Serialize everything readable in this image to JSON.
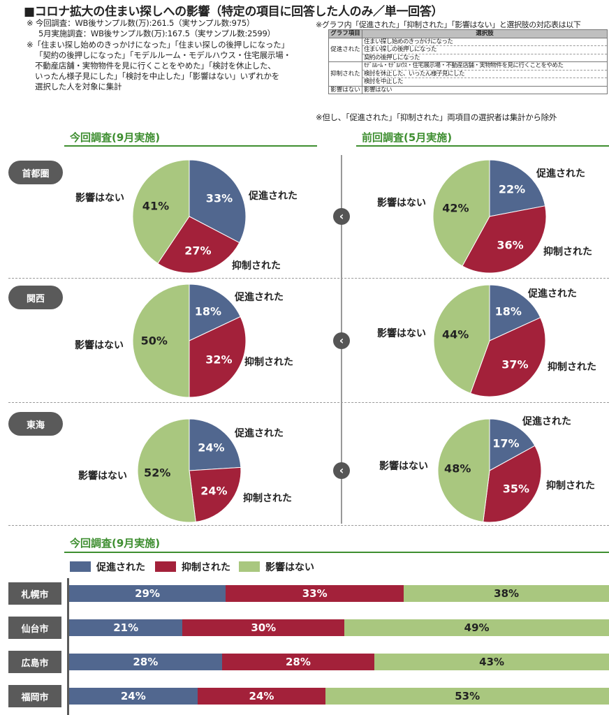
{
  "header": {
    "title": "■コロナ拡大の住まい探しへの影響（特定の項目に回答した人のみ／単一回答）",
    "notes": [
      "※ 今回調査：WB後サンプル数(万):261.5（実サンプル数:975）",
      "5月実施調査：WB後サンプル数(万):167.5（実サンプル数:2599）",
      "※「住まい探し始めのきっかけになった」「住まい探しの後押しになった」",
      "「契約の後押しになった」「モデルルーム・モデルハウス・住宅展示場・",
      "不動産店舗・実物物件を見に行くことをやめた」「検討を休止した、",
      "いったん様子見にした」「検討を中止した」「影響はない」いずれかを",
      "選択した人を対象に集計"
    ],
    "corr_note": "※グラフ内「促進された」「抑制された」「影響はない」と選択肢の対応表は以下",
    "exclude_note": "※但し、「促進された」「抑制された」両項目の選択者は集計から除外"
  },
  "corr_table": {
    "col_headers": [
      "グラフ項目",
      "選択肢"
    ],
    "groups": [
      {
        "category": "促進された",
        "options": [
          "住まい探し始めのきっかけになった",
          "住まい探しの後押しになった",
          "契約の後押しになった"
        ]
      },
      {
        "category": "抑制された",
        "options": [
          "ﾓﾃﾞﾙﾙｰﾑ・ﾓﾃﾞﾙﾊｳｽ・住宅展示場・不動産店舗・実物物件を見に行くことをやめた",
          "検討を休止した、いったん様子見にした",
          "検討を中止した"
        ]
      },
      {
        "category": "影響はない",
        "options": [
          "影響はない"
        ]
      }
    ]
  },
  "sections": {
    "current": "今回調査(9月実施)",
    "previous": "前回調査(5月実施)",
    "bottom": "今回調査(9月実施)"
  },
  "labels": {
    "promoted": "促進された",
    "suppressed": "抑制された",
    "none": "影響はない"
  },
  "colors": {
    "promoted": "#51678f",
    "suppressed": "#a3213a",
    "none": "#a9c77f",
    "accent": "#3e8e30"
  },
  "chart_data": [
    {
      "type": "pie",
      "region": "首都圏",
      "survey": "今回調査(9月実施)",
      "categories": [
        "促進された",
        "抑制された",
        "影響はない"
      ],
      "values": [
        33,
        27,
        41
      ],
      "unit": "%"
    },
    {
      "type": "pie",
      "region": "首都圏",
      "survey": "前回調査(5月実施)",
      "categories": [
        "促進された",
        "抑制された",
        "影響はない"
      ],
      "values": [
        22,
        36,
        42
      ],
      "unit": "%"
    },
    {
      "type": "pie",
      "region": "関西",
      "survey": "今回調査(9月実施)",
      "categories": [
        "促進された",
        "抑制された",
        "影響はない"
      ],
      "values": [
        18,
        32,
        50
      ],
      "unit": "%"
    },
    {
      "type": "pie",
      "region": "関西",
      "survey": "前回調査(5月実施)",
      "categories": [
        "促進された",
        "抑制された",
        "影響はない"
      ],
      "values": [
        18,
        37,
        44
      ],
      "unit": "%"
    },
    {
      "type": "pie",
      "region": "東海",
      "survey": "今回調査(9月実施)",
      "categories": [
        "促進された",
        "抑制された",
        "影響はない"
      ],
      "values": [
        24,
        24,
        52
      ],
      "unit": "%"
    },
    {
      "type": "pie",
      "region": "東海",
      "survey": "前回調査(5月実施)",
      "categories": [
        "促進された",
        "抑制された",
        "影響はない"
      ],
      "values": [
        17,
        35,
        48
      ],
      "unit": "%"
    },
    {
      "type": "bar",
      "orientation": "horizontal-stacked",
      "survey": "今回調査(9月実施)",
      "categories": [
        "札幌市",
        "仙台市",
        "広島市",
        "福岡市"
      ],
      "series": [
        {
          "name": "促進された",
          "values": [
            29,
            21,
            28,
            24
          ]
        },
        {
          "name": "抑制された",
          "values": [
            33,
            30,
            28,
            24
          ]
        },
        {
          "name": "影響はない",
          "values": [
            38,
            49,
            43,
            53
          ]
        }
      ],
      "unit": "%",
      "legend": "top-left"
    }
  ]
}
